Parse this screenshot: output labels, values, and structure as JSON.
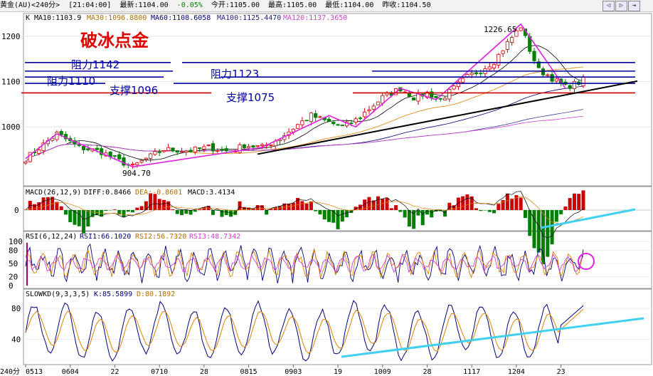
{
  "header": {
    "symbol": "黄金(AU)<240分>",
    "time": "[21:04:00]",
    "latest": "最新:1104.00",
    "change": "-0.05%",
    "open": "今开:1105.00",
    "high": "最高:1105.00",
    "low": "最低:1104.00",
    "prev_close": "昨收:1104.50",
    "nav_prev_icon": "arrow-left-icon",
    "nav_next_icon": "arrow-right-icon",
    "nav_exit_icon": "exit-icon"
  },
  "annotations": {
    "title": "破冰点金",
    "resist_1142": "阻力1142",
    "resist_1123": "阻力1123",
    "resist_1110": "阻力1110",
    "support_1096": "支撑1096",
    "support_1075": "支撑1075",
    "high_label": "1226.65",
    "low_label": "904.70"
  },
  "colors": {
    "up": "#cc0000",
    "down": "#008000",
    "ma10": "#000000",
    "ma30": "#e08000",
    "ma60": "#000080",
    "ma100": "#4040a0",
    "ma120": "#d040d0",
    "resistance": "#0000a0",
    "support": "#cc0000",
    "trend": "#000000",
    "zigzag": "#e020e0",
    "cyan": "#40d0f0"
  },
  "chart_data": [
    {
      "type": "candlestick",
      "panel": "price",
      "legend": {
        "k": "K",
        "ma10": "MA10:1103.9",
        "ma30": "MA30:1096.8800",
        "ma60": "MA60:1108.6058",
        "ma100": "MA100:1125.4470",
        "ma120": "MA120:1137.3650"
      },
      "y_ticks": [
        "1200",
        "1100",
        "1000"
      ],
      "ylim": [
        870,
        1250
      ],
      "x_ticks": [
        "0513",
        "0604",
        "22",
        "0710",
        "28",
        "0815",
        "0903",
        "19",
        "1009",
        "28",
        "1117",
        "1204",
        "23"
      ],
      "x_tick_positions": [
        0,
        10,
        20,
        30,
        40,
        50,
        60,
        70,
        80,
        90,
        100,
        110,
        120
      ],
      "anchor_closes": [
        [
          0,
          930
        ],
        [
          7,
          985
        ],
        [
          12,
          955
        ],
        [
          17,
          945
        ],
        [
          21,
          925
        ],
        [
          24,
          912
        ],
        [
          27,
          930
        ],
        [
          31,
          950
        ],
        [
          37,
          948
        ],
        [
          41,
          955
        ],
        [
          46,
          945
        ],
        [
          49,
          960
        ],
        [
          53,
          955
        ],
        [
          57,
          975
        ],
        [
          61,
          1005
        ],
        [
          64,
          1025
        ],
        [
          68,
          1010
        ],
        [
          71,
          1000
        ],
        [
          74,
          1015
        ],
        [
          77,
          1040
        ],
        [
          80,
          1065
        ],
        [
          84,
          1085
        ],
        [
          87,
          1065
        ],
        [
          90,
          1075
        ],
        [
          93,
          1060
        ],
        [
          96,
          1085
        ],
        [
          99,
          1110
        ],
        [
          102,
          1125
        ],
        [
          105,
          1145
        ],
        [
          108,
          1185
        ],
        [
          111,
          1222
        ],
        [
          113,
          1170
        ],
        [
          115,
          1125
        ],
        [
          117,
          1115
        ],
        [
          119,
          1100
        ],
        [
          121,
          1088
        ],
        [
          124,
          1098
        ],
        [
          125,
          1104
        ]
      ],
      "levels": {
        "resistance": [
          1142,
          1123,
          1110
        ],
        "support": [
          1096,
          1075
        ]
      },
      "marked_high": 1226.65,
      "marked_low": 904.7
    },
    {
      "type": "bar",
      "panel": "MACD",
      "legend": {
        "name": "MACD(26,12,9)",
        "diff": "DIFF:0.8466",
        "dea": "DEA:-0.8601",
        "macd": "MACD:3.4134"
      },
      "y_ticks": [
        "0"
      ],
      "last_values": {
        "diff": 0.8466,
        "dea": -0.8601,
        "macd": 3.4134
      }
    },
    {
      "type": "line",
      "panel": "RSI",
      "legend": {
        "name": "RSI(6,12,24)",
        "rsi1": "RSI1:66.1020",
        "rsi2": "RSI2:56.7320",
        "rsi3": "RSI3:48.7342"
      },
      "y_ticks": [
        "100",
        "80",
        "50",
        "20",
        "0"
      ],
      "ylim": [
        0,
        100
      ],
      "last_values": {
        "rsi1": 66.102,
        "rsi2": 56.732,
        "rsi3": 48.7342
      }
    },
    {
      "type": "line",
      "panel": "SLOWKD",
      "legend": {
        "name": "SLOWKD(9,3,3,5)",
        "k": "K:85.5899",
        "d": "D:80.1892"
      },
      "y_ticks": [
        "80",
        "40"
      ],
      "ylim": [
        10,
        95
      ],
      "last_values": {
        "k": 85.5899,
        "d": 80.1892
      },
      "x_axis_unit": "240分"
    }
  ]
}
